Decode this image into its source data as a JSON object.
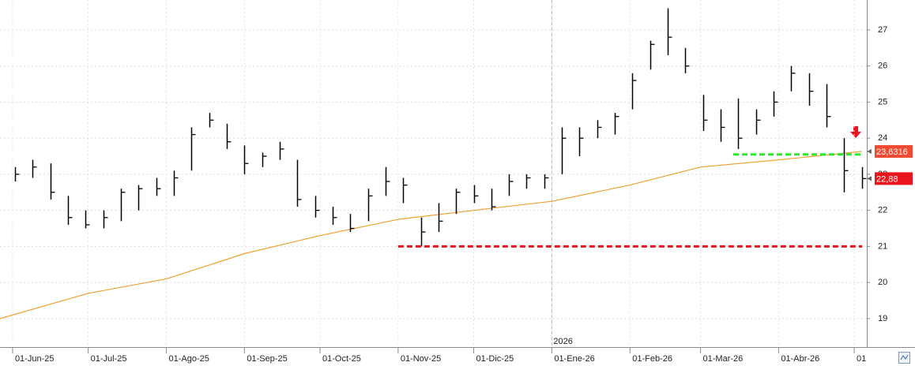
{
  "chart_data": {
    "type": "ohlc",
    "xlim": [
      "2025-05-27",
      "2026-05-06"
    ],
    "ylim": [
      18.21,
      27.83
    ],
    "yticks": [
      19,
      20,
      21,
      22,
      23,
      24,
      25,
      26,
      27
    ],
    "xticks": [
      {
        "value": "2025-06-01",
        "label": "01-Jun-25"
      },
      {
        "value": "2025-07-01",
        "label": "01-Jul-25"
      },
      {
        "value": "2025-08-01",
        "label": "01-Ago-25"
      },
      {
        "value": "2025-09-01",
        "label": "01-Sep-25"
      },
      {
        "value": "2025-10-01",
        "label": "01-Oct-25"
      },
      {
        "value": "2025-11-01",
        "label": "01-Nov-25"
      },
      {
        "value": "2025-12-01",
        "label": "01-Dic-25"
      },
      {
        "value": "2026-01-01",
        "label": "01-Ene-26"
      },
      {
        "value": "2026-02-01",
        "label": "01-Feb-26"
      },
      {
        "value": "2026-03-01",
        "label": "01-Mar-26"
      },
      {
        "value": "2026-04-01",
        "label": "01-Abr-26"
      },
      {
        "value": "2026-05-01",
        "label": "01"
      }
    ],
    "grid": true,
    "color": "#000000",
    "x": [
      "2025-06-02",
      "2025-06-09",
      "2025-06-16",
      "2025-06-23",
      "2025-06-30",
      "2025-07-07",
      "2025-07-14",
      "2025-07-21",
      "2025-07-28",
      "2025-08-04",
      "2025-08-11",
      "2025-08-18",
      "2025-08-25",
      "2025-09-01",
      "2025-09-08",
      "2025-09-15",
      "2025-09-22",
      "2025-09-29",
      "2025-10-06",
      "2025-10-13",
      "2025-10-20",
      "2025-10-27",
      "2025-11-03",
      "2025-11-10",
      "2025-11-17",
      "2025-11-24",
      "2025-12-01",
      "2025-12-08",
      "2025-12-15",
      "2025-12-22",
      "2025-12-29",
      "2026-01-05",
      "2026-01-12",
      "2026-01-19",
      "2026-01-26",
      "2026-02-02",
      "2026-02-09",
      "2026-02-16",
      "2026-02-23",
      "2026-03-02",
      "2026-03-09",
      "2026-03-16",
      "2026-03-23",
      "2026-03-30",
      "2026-04-06",
      "2026-04-13",
      "2026-04-20",
      "2026-04-27",
      "2026-05-04"
    ],
    "high": [
      23.2,
      23.4,
      23.3,
      22.4,
      22.0,
      22.0,
      22.6,
      22.7,
      22.9,
      23.1,
      24.3,
      24.7,
      24.4,
      23.8,
      23.6,
      23.9,
      23.4,
      22.4,
      22.1,
      21.9,
      22.6,
      23.2,
      22.9,
      21.8,
      22.2,
      22.6,
      22.7,
      22.6,
      23.0,
      23.0,
      23.0,
      24.3,
      24.3,
      24.5,
      24.7,
      25.8,
      26.7,
      27.6,
      26.5,
      25.2,
      24.8,
      25.1,
      24.8,
      25.3,
      26.0,
      25.8,
      25.5,
      24.0,
      23.2
    ],
    "low": [
      22.8,
      22.9,
      22.3,
      21.6,
      21.5,
      21.5,
      21.7,
      22.0,
      22.4,
      22.4,
      23.1,
      24.3,
      23.7,
      23.0,
      23.2,
      23.4,
      22.1,
      21.8,
      21.6,
      21.4,
      21.7,
      22.4,
      22.2,
      21.0,
      21.4,
      21.9,
      22.2,
      22.0,
      22.4,
      22.6,
      22.6,
      23.0,
      23.5,
      24.0,
      24.1,
      24.8,
      25.9,
      26.3,
      25.8,
      24.2,
      23.9,
      23.7,
      24.1,
      24.6,
      25.3,
      24.9,
      24.3,
      22.5,
      22.6
    ],
    "close": [
      23.0,
      23.2,
      22.5,
      21.8,
      21.6,
      21.8,
      22.5,
      22.6,
      22.6,
      22.9,
      24.1,
      24.5,
      23.9,
      23.3,
      23.5,
      23.7,
      22.3,
      22.0,
      21.8,
      21.5,
      22.4,
      22.8,
      22.7,
      21.4,
      21.7,
      22.5,
      22.4,
      22.1,
      22.8,
      22.9,
      22.9,
      24.0,
      24.0,
      24.3,
      24.6,
      25.6,
      26.6,
      26.8,
      26.0,
      24.5,
      24.3,
      24.0,
      24.5,
      25.0,
      25.8,
      25.3,
      24.6,
      23.1,
      22.88
    ],
    "moving_average": {
      "color": "#f0a030",
      "x": [
        "2025-05-27",
        "2025-07-01",
        "2025-08-01",
        "2025-09-01",
        "2025-10-01",
        "2025-11-01",
        "2025-12-01",
        "2026-01-01",
        "2026-02-01",
        "2026-03-01",
        "2026-04-01",
        "2026-05-04"
      ],
      "values": [
        19.0,
        19.7,
        20.1,
        20.8,
        21.3,
        21.75,
        22.0,
        22.25,
        22.7,
        23.2,
        23.4,
        23.6316
      ]
    },
    "levels": [
      {
        "value": 21.0,
        "color": "#e8141e",
        "x_start": "2025-11-01"
      },
      {
        "value": 23.55,
        "color": "#2ee82e",
        "x_start": "2026-03-14"
      }
    ],
    "price_tags": [
      {
        "value": 23.6316,
        "label": "23,6316",
        "color": "#f04a32"
      },
      {
        "value": 22.88,
        "label": "22,88",
        "color": "#e8141e"
      }
    ],
    "year_marker": {
      "x": "2026-01-01",
      "label": "2026"
    }
  }
}
